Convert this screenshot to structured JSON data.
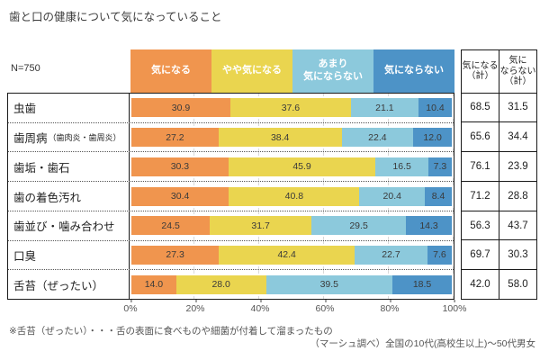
{
  "title": "歯と口の健康について気になっていること",
  "sample_size_label": "N=750",
  "footnote": "※舌苔（ぜったい）・・・舌の表面に食べものや細菌が付着して溜まったもの",
  "source": "（マーシュ調べ）全国の10代(高校生以上)～50代男女",
  "chart_data": {
    "type": "bar",
    "stacked": true,
    "orientation": "horizontal",
    "title": "歯と口の健康について気になっていること",
    "sample_size": 750,
    "xlim": [
      0,
      100
    ],
    "x_ticks": [
      "0%",
      "20%",
      "40%",
      "60%",
      "80%",
      "100%"
    ],
    "grid": true,
    "legend_position": "top",
    "series_labels": [
      "気になる",
      "やや気になる",
      "あまり\n気にならない",
      "気にならない"
    ],
    "series_colors": [
      "#F0954E",
      "#EAD54F",
      "#8CC9DC",
      "#4D93C7"
    ],
    "summary_headers": [
      "気になる\n（計）",
      "気に\nならない\n（計）"
    ],
    "categories": [
      "虫歯",
      "歯周病（歯肉炎・歯周炎）",
      "歯垢・歯石",
      "歯の着色汚れ",
      "歯並び・噛み合わせ",
      "口臭",
      "舌苔（ぜったい）"
    ],
    "rows": [
      {
        "label": "虫歯",
        "values": [
          "30.9",
          "37.6",
          "21.1",
          "10.4"
        ],
        "totals": [
          "68.5",
          "31.5"
        ]
      },
      {
        "label": "歯周病",
        "note": "（歯肉炎・歯周炎）",
        "values": [
          "27.2",
          "38.4",
          "22.4",
          "12.0"
        ],
        "totals": [
          "65.6",
          "34.4"
        ]
      },
      {
        "label": "歯垢・歯石",
        "values": [
          "30.3",
          "45.9",
          "16.5",
          "7.3"
        ],
        "totals": [
          "76.1",
          "23.9"
        ]
      },
      {
        "label": "歯の着色汚れ",
        "values": [
          "30.4",
          "40.8",
          "20.4",
          "8.4"
        ],
        "totals": [
          "71.2",
          "28.8"
        ]
      },
      {
        "label": "歯並び・噛み合わせ",
        "values": [
          "24.5",
          "31.7",
          "29.5",
          "14.3"
        ],
        "totals": [
          "56.3",
          "43.7"
        ]
      },
      {
        "label": "口臭",
        "values": [
          "27.3",
          "42.4",
          "22.7",
          "7.6"
        ],
        "totals": [
          "69.7",
          "30.3"
        ]
      },
      {
        "label": "舌苔（ぜったい）",
        "values": [
          "14.0",
          "28.0",
          "39.5",
          "18.5"
        ],
        "totals": [
          "42.0",
          "58.0"
        ]
      }
    ]
  }
}
